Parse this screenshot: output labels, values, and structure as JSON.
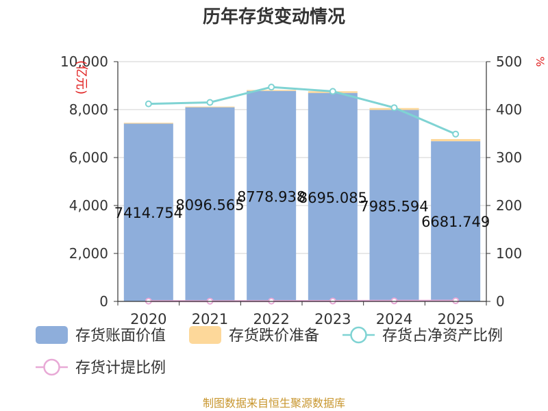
{
  "chart_data": {
    "type": "bar",
    "title": "历年存货变动情况",
    "categories": [
      "2020",
      "2021",
      "2022",
      "2023",
      "2024",
      "2025"
    ],
    "y_left": {
      "unit": "(亿元)",
      "range": [
        0,
        10000
      ],
      "ticks": [
        "0",
        "2,000",
        "4,000",
        "6,000",
        "8,000",
        "10,000"
      ],
      "tick_values": [
        0,
        2000,
        4000,
        6000,
        8000,
        10000
      ]
    },
    "y_right": {
      "unit": "%",
      "range": [
        0,
        500
      ],
      "ticks": [
        "0",
        "100",
        "200",
        "300",
        "400",
        "500"
      ],
      "tick_values": [
        0,
        100,
        200,
        300,
        400,
        500
      ]
    },
    "series": [
      {
        "name": "存货账面价值",
        "type": "bar",
        "axis": "left",
        "color": "#8eaedb",
        "values": [
          7414.754,
          8096.565,
          8778.938,
          8695.085,
          7985.594,
          6681.749
        ],
        "labels": [
          "7414.754",
          "8096.565",
          "8778.938",
          "8695.085",
          "7985.594",
          "6681.749"
        ]
      },
      {
        "name": "存货跌价准备",
        "type": "bar-stacked",
        "axis": "left",
        "color": "#fdd89a",
        "values": [
          35,
          30,
          40,
          70,
          80,
          90
        ]
      },
      {
        "name": "存货占净资产比例",
        "type": "line",
        "axis": "right",
        "color": "#7fd3d3",
        "values": [
          412,
          415,
          447,
          438,
          404,
          349
        ]
      },
      {
        "name": "存货计提比例",
        "type": "line",
        "axis": "right",
        "color": "#e8a9d6",
        "values": [
          0.5,
          0.4,
          0.5,
          0.8,
          1.0,
          1.3
        ]
      }
    ],
    "grid": true,
    "legend_position": "bottom"
  },
  "source_text": "制图数据来自恒生聚源数据库"
}
